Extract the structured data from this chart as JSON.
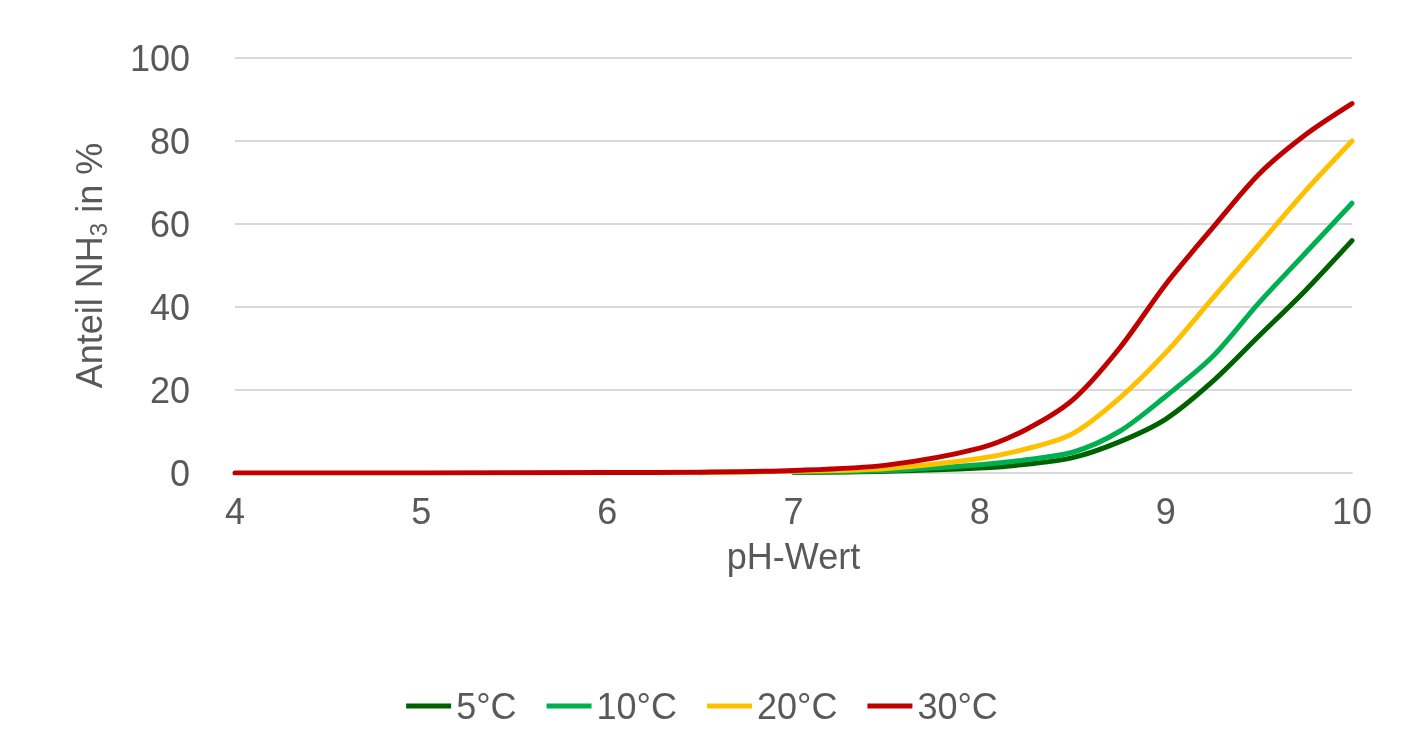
{
  "chart_data": {
    "type": "line",
    "xlabel": "pH-Wert",
    "ylabel": "Anteil NH$_{3}$ in %",
    "x": [
      4,
      5,
      6,
      6.5,
      7,
      7.5,
      8,
      8.25,
      8.5,
      8.75,
      9,
      9.25,
      9.5,
      9.75,
      10
    ],
    "xlim": [
      4,
      10
    ],
    "xticks": [
      4,
      5,
      6,
      7,
      8,
      9,
      10
    ],
    "ylim": [
      0,
      100
    ],
    "yticks": [
      0,
      20,
      40,
      60,
      80,
      100
    ],
    "grid": "y",
    "legend": "bottom",
    "marker": "none",
    "line_style": "solid",
    "series": [
      {
        "name": "5°C",
        "color": "#006100",
        "values": [
          null,
          null,
          null,
          null,
          0.1,
          0.4,
          1.2,
          2.1,
          3.7,
          7.5,
          13,
          22,
          33,
          44,
          56
        ]
      },
      {
        "name": "10°C",
        "color": "#00b050",
        "values": [
          null,
          null,
          null,
          null,
          0.2,
          0.6,
          2,
          3.2,
          5,
          10,
          18.5,
          28,
          41,
          53,
          65
        ]
      },
      {
        "name": "20°C",
        "color": "#ffc000",
        "values": [
          null,
          null,
          null,
          0.1,
          0.4,
          1.1,
          3.5,
          5.8,
          9.5,
          18,
          29,
          42,
          55,
          68,
          80
        ]
      },
      {
        "name": "30°C",
        "color": "#c00000",
        "values": [
          0,
          0,
          0.1,
          0.2,
          0.6,
          1.9,
          6,
          10.5,
          17.6,
          30,
          45.5,
          59,
          72,
          81.5,
          89
        ]
      }
    ]
  }
}
